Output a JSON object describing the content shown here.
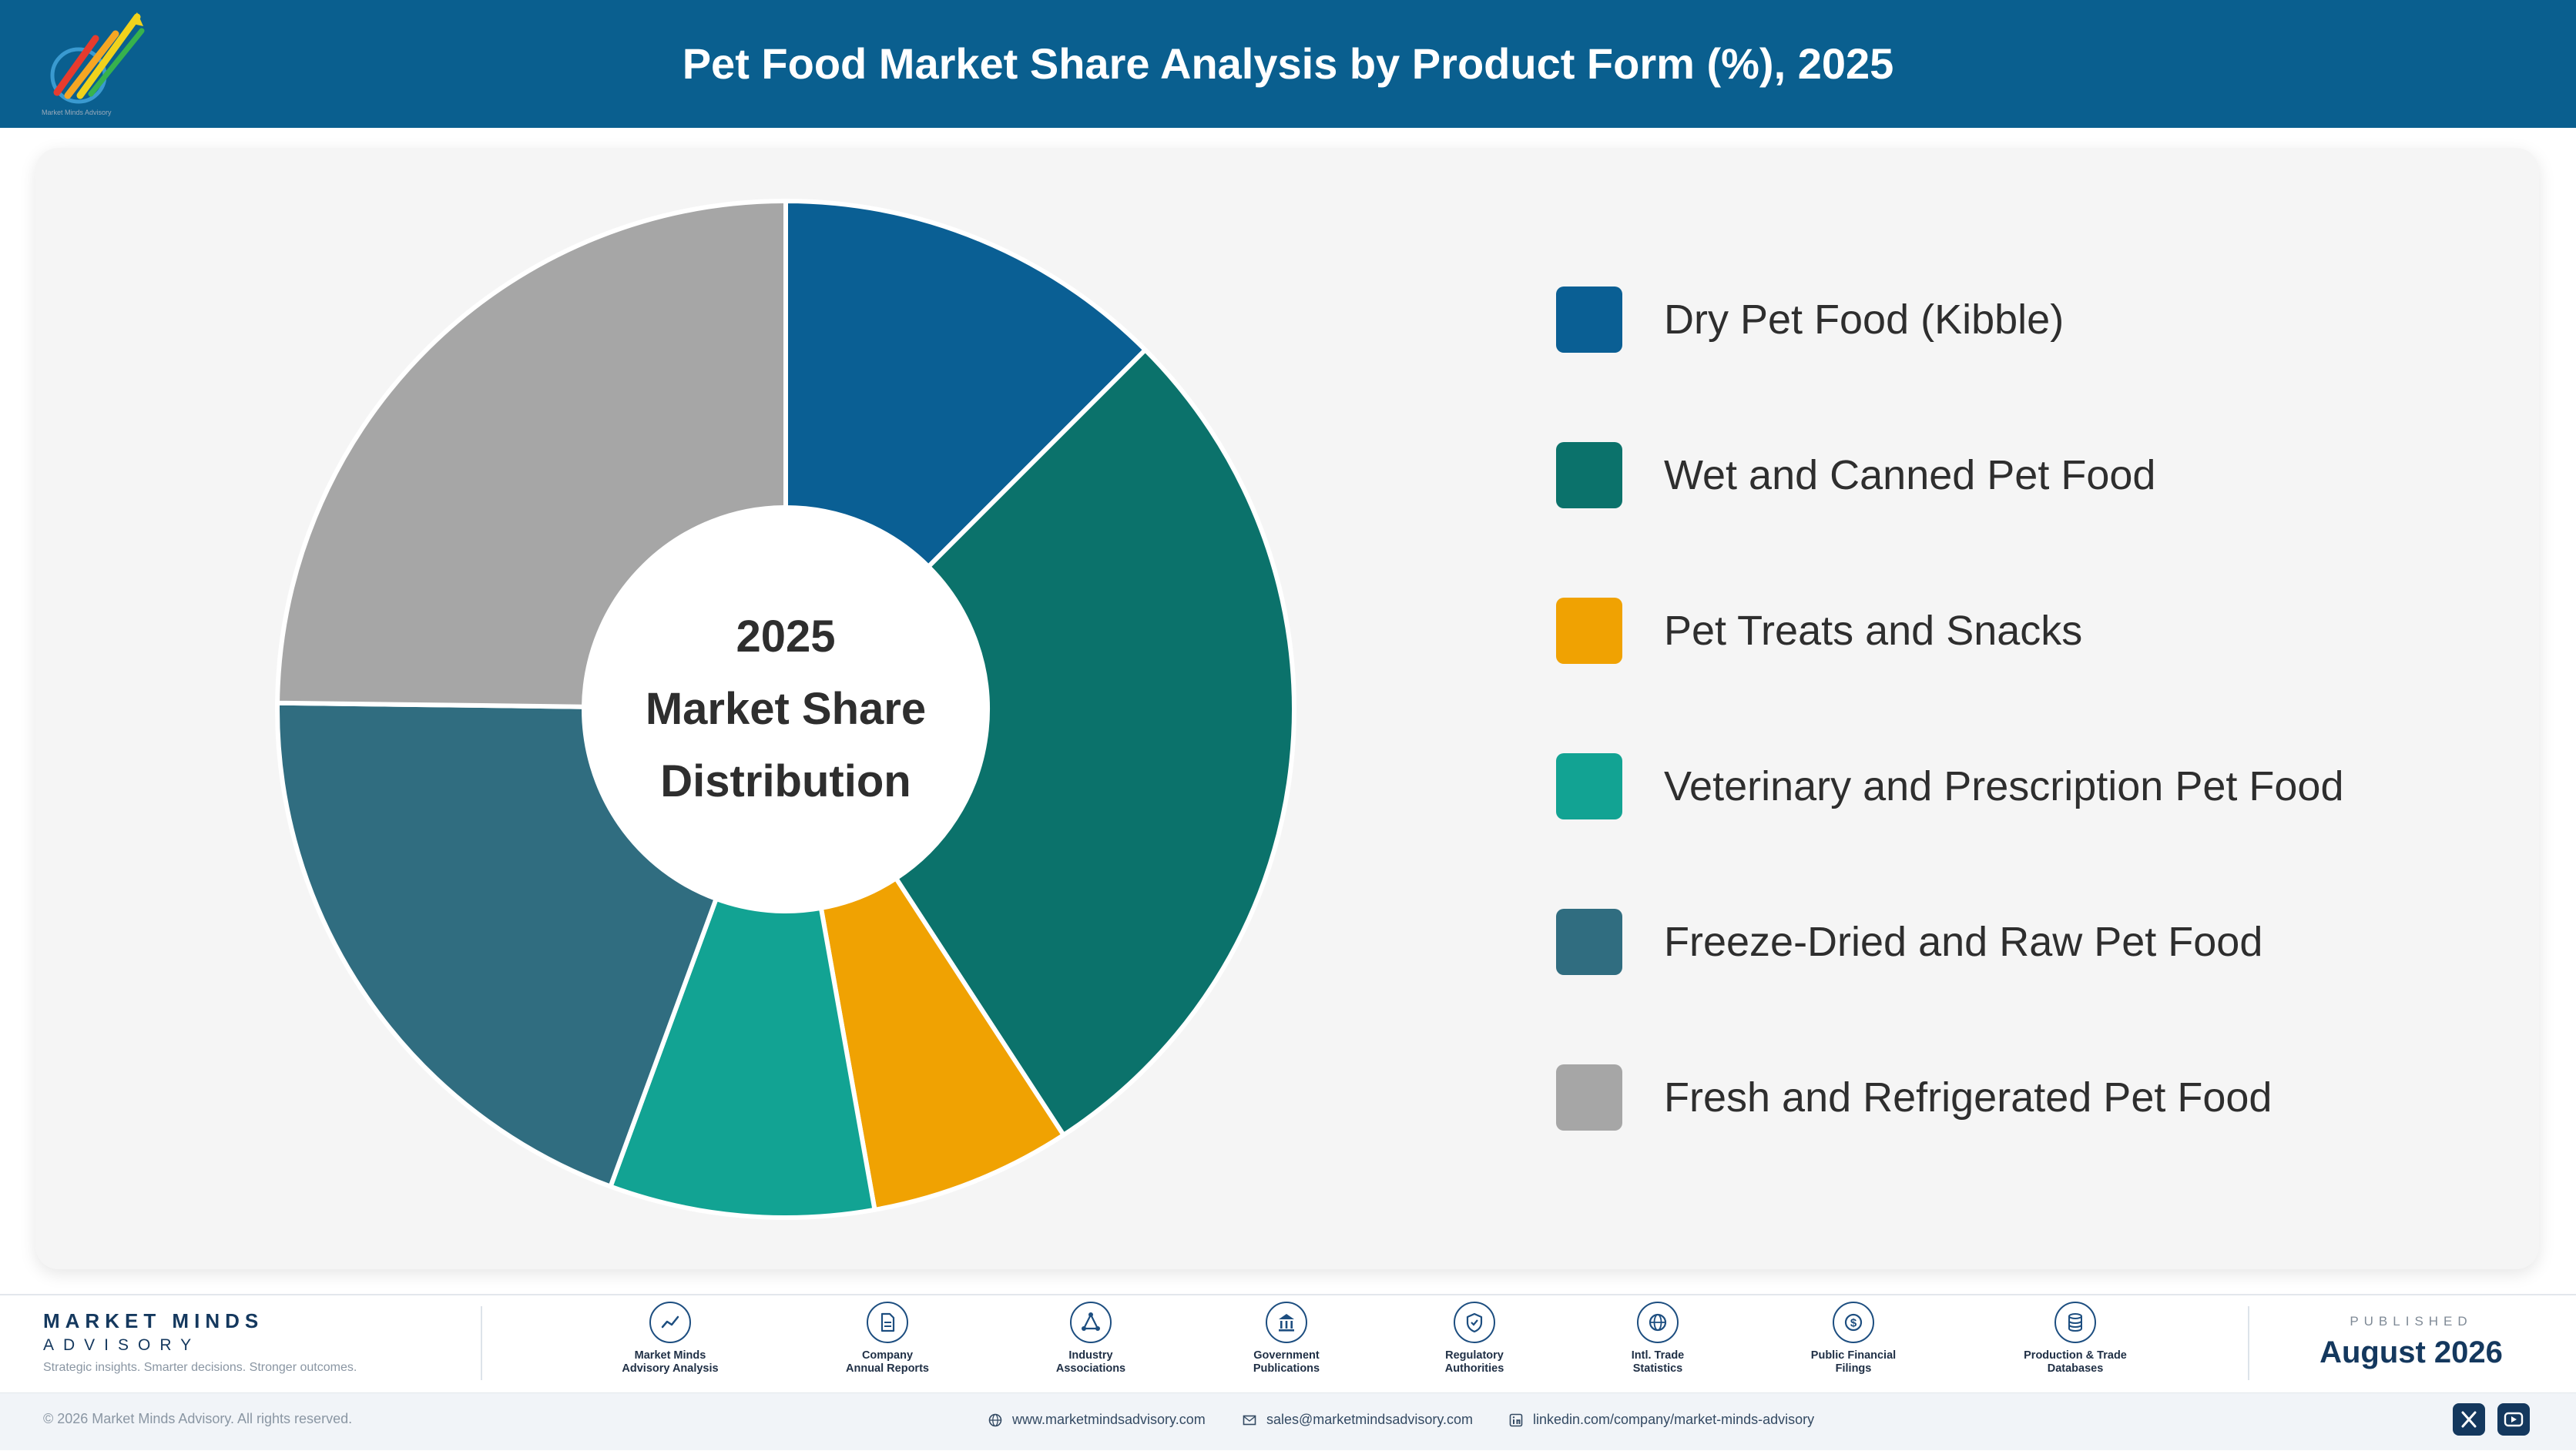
{
  "header": {
    "title": "Pet Food Market Share Analysis by Product Form (%), 2025",
    "logo_icon": "rising-arrows-globe-logo",
    "logo_caption": "Market Minds Advisory"
  },
  "chart_data": {
    "type": "pie",
    "variant": "donut",
    "title": "Pet Food Market Share Analysis by Product Form (%), 2025",
    "center_label": [
      "2025",
      "Market Share",
      "Distribution"
    ],
    "start_angle_deg": 0,
    "direction": "clockwise",
    "legend_position": "right",
    "categories": [
      "Dry Pet Food (Kibble)",
      "Wet and Canned Pet Food",
      "Pet Treats and Snacks",
      "Veterinary and Prescription Pet Food",
      "Freeze-Dried and Raw Pet Food",
      "Fresh and Refrigerated Pet Food"
    ],
    "values": [
      12.5,
      28.3,
      6.4,
      8.4,
      19.6,
      24.8
    ],
    "colors": [
      "#0a5f94",
      "#0b726b",
      "#f0a202",
      "#12a393",
      "#306d80",
      "#a6a6a6"
    ]
  },
  "footer": {
    "brand_name": "MARKET MINDS",
    "brand_sub": "ADVISORY",
    "tagline": "Strategic insights. Smarter decisions. Stronger outcomes.",
    "sources": [
      {
        "label": "Market Minds\nAdvisory Analysis",
        "icon": "trend-line-icon"
      },
      {
        "label": "Company\nAnnual Reports",
        "icon": "document-icon"
      },
      {
        "label": "Industry\nAssociations",
        "icon": "network-icon"
      },
      {
        "label": "Government\nPublications",
        "icon": "government-building-icon"
      },
      {
        "label": "Regulatory\nAuthorities",
        "icon": "shield-check-icon"
      },
      {
        "label": "Intl. Trade\nStatistics",
        "icon": "globe-icon"
      },
      {
        "label": "Public Financial\nFilings",
        "icon": "dollar-coin-icon"
      },
      {
        "label": "Production & Trade\nDatabases",
        "icon": "database-icon"
      }
    ],
    "published_label": "PUBLISHED",
    "published_date": "August 2026",
    "copyright": "© 2026 Market Minds Advisory. All rights reserved.",
    "website": "www.marketmindsadvisory.com",
    "email": "sales@marketmindsadvisory.com",
    "linkedin": "linkedin.com/company/market-minds-advisory",
    "social_icons": [
      "x-icon",
      "youtube-icon"
    ]
  }
}
